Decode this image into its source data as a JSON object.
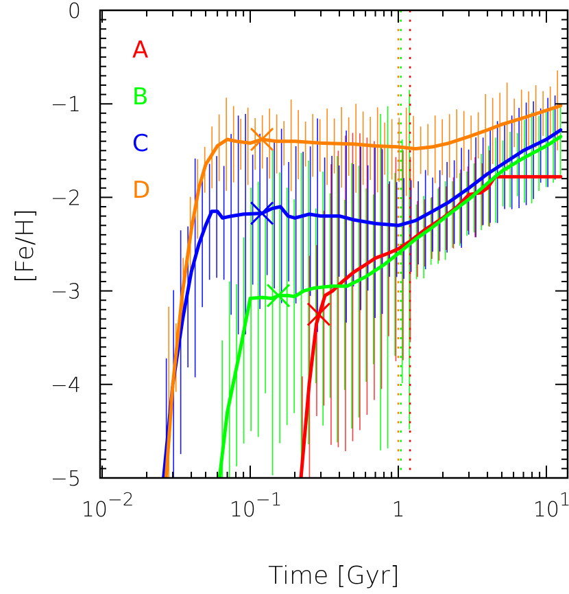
{
  "chart_data": {
    "type": "line",
    "title": "",
    "xlabel": "Time [Gyr]",
    "ylabel": "[Fe/H]",
    "xscale": "log",
    "xlim": [
      0.01,
      13.5
    ],
    "ylim": [
      -5,
      0
    ],
    "grid": false,
    "legend_position": "upper-left",
    "x_ticks": [
      {
        "value": 0.01,
        "base": "10",
        "exp": "−2"
      },
      {
        "value": 0.1,
        "base": "10",
        "exp": "−1"
      },
      {
        "value": 1,
        "base": "1",
        "exp": ""
      },
      {
        "value": 10,
        "base": "10",
        "exp": "1"
      }
    ],
    "y_ticks": [
      {
        "value": 0,
        "label": "0"
      },
      {
        "value": -1,
        "label": "−1"
      },
      {
        "value": -2,
        "label": "−2"
      },
      {
        "value": -3,
        "label": "−3"
      },
      {
        "value": -4,
        "label": "−4"
      },
      {
        "value": -5,
        "label": "−5"
      }
    ],
    "series": [
      {
        "name": "A",
        "color": "#ff0000",
        "x": [
          0.22,
          0.25,
          0.28,
          0.32,
          0.36,
          0.42,
          0.5,
          0.6,
          0.7,
          0.85,
          1.0,
          1.2,
          1.5,
          2.0,
          2.5,
          3.0,
          3.6,
          4.0,
          4.5,
          6,
          8,
          12.5
        ],
        "y": [
          -5.0,
          -4.0,
          -3.35,
          -3.05,
          -3.0,
          -2.9,
          -2.8,
          -2.72,
          -2.65,
          -2.6,
          -2.55,
          -2.47,
          -2.35,
          -2.22,
          -2.1,
          -1.97,
          -1.95,
          -1.9,
          -1.78,
          -1.78,
          -1.78,
          -1.78
        ],
        "dispersion": 1.2,
        "marker_x": 0.29,
        "marker_y": -3.25,
        "dotted_vline_x": 1.2
      },
      {
        "name": "B",
        "color": "#00ff00",
        "x": [
          0.062,
          0.07,
          0.085,
          0.1,
          0.12,
          0.14,
          0.155,
          0.18,
          0.2,
          0.23,
          0.27,
          0.35,
          0.45,
          0.6,
          0.8,
          1.0,
          1.3,
          1.7,
          2.2,
          3.0,
          4.0,
          5.0,
          7.0,
          10.0,
          12.5
        ],
        "y": [
          -5.0,
          -4.3,
          -3.65,
          -3.08,
          -3.07,
          -3.08,
          -3.05,
          -3.05,
          -3.06,
          -3.0,
          -2.97,
          -2.95,
          -2.95,
          -2.85,
          -2.72,
          -2.6,
          -2.45,
          -2.32,
          -2.18,
          -2.02,
          -1.85,
          -1.72,
          -1.58,
          -1.45,
          -1.35
        ],
        "dispersion": 1.3,
        "marker_x": 0.155,
        "marker_y": -3.05,
        "dotted_vline_x": 1.04
      },
      {
        "name": "C",
        "color": "#0000ff",
        "x": [
          0.026,
          0.03,
          0.035,
          0.04,
          0.045,
          0.05,
          0.055,
          0.06,
          0.065,
          0.075,
          0.09,
          0.12,
          0.14,
          0.16,
          0.18,
          0.2,
          0.25,
          0.3,
          0.4,
          0.5,
          0.7,
          1.0,
          1.3,
          1.7,
          2.2,
          3.0,
          4.0,
          5.0,
          7.0,
          10.0,
          12.5
        ],
        "y": [
          -5.0,
          -4.0,
          -3.3,
          -2.8,
          -2.5,
          -2.3,
          -2.15,
          -2.15,
          -2.22,
          -2.2,
          -2.18,
          -2.17,
          -2.12,
          -2.1,
          -2.2,
          -2.22,
          -2.18,
          -2.2,
          -2.2,
          -2.24,
          -2.28,
          -2.3,
          -2.25,
          -2.15,
          -2.05,
          -1.9,
          -1.75,
          -1.65,
          -1.5,
          -1.38,
          -1.28
        ],
        "dispersion": 0.9,
        "marker_x": 0.12,
        "marker_y": -2.17,
        "dotted_vline_x": null
      },
      {
        "name": "D",
        "color": "#ff8000",
        "x": [
          0.027,
          0.03,
          0.035,
          0.04,
          0.045,
          0.05,
          0.06,
          0.07,
          0.08,
          0.1,
          0.12,
          0.15,
          0.2,
          0.3,
          0.5,
          0.7,
          1.0,
          1.3,
          1.7,
          2.2,
          3.0,
          4.0,
          5.0,
          7.0,
          10.0,
          12.5
        ],
        "y": [
          -5.0,
          -4.0,
          -3.0,
          -2.35,
          -1.9,
          -1.65,
          -1.45,
          -1.38,
          -1.4,
          -1.42,
          -1.38,
          -1.4,
          -1.4,
          -1.42,
          -1.43,
          -1.45,
          -1.46,
          -1.48,
          -1.46,
          -1.42,
          -1.35,
          -1.28,
          -1.22,
          -1.15,
          -1.07,
          -1.02
        ],
        "dispersion": 0.35,
        "marker_x": 0.12,
        "marker_y": -1.38,
        "dotted_vline_x": 1.0
      }
    ]
  },
  "legend": [
    {
      "label": "A",
      "color": "#ff0000"
    },
    {
      "label": "B",
      "color": "#00ff00"
    },
    {
      "label": "C",
      "color": "#0000ff"
    },
    {
      "label": "D",
      "color": "#ff8000"
    }
  ],
  "axes": {
    "x_title": "Time [Gyr]",
    "y_title": "[Fe/H]"
  }
}
